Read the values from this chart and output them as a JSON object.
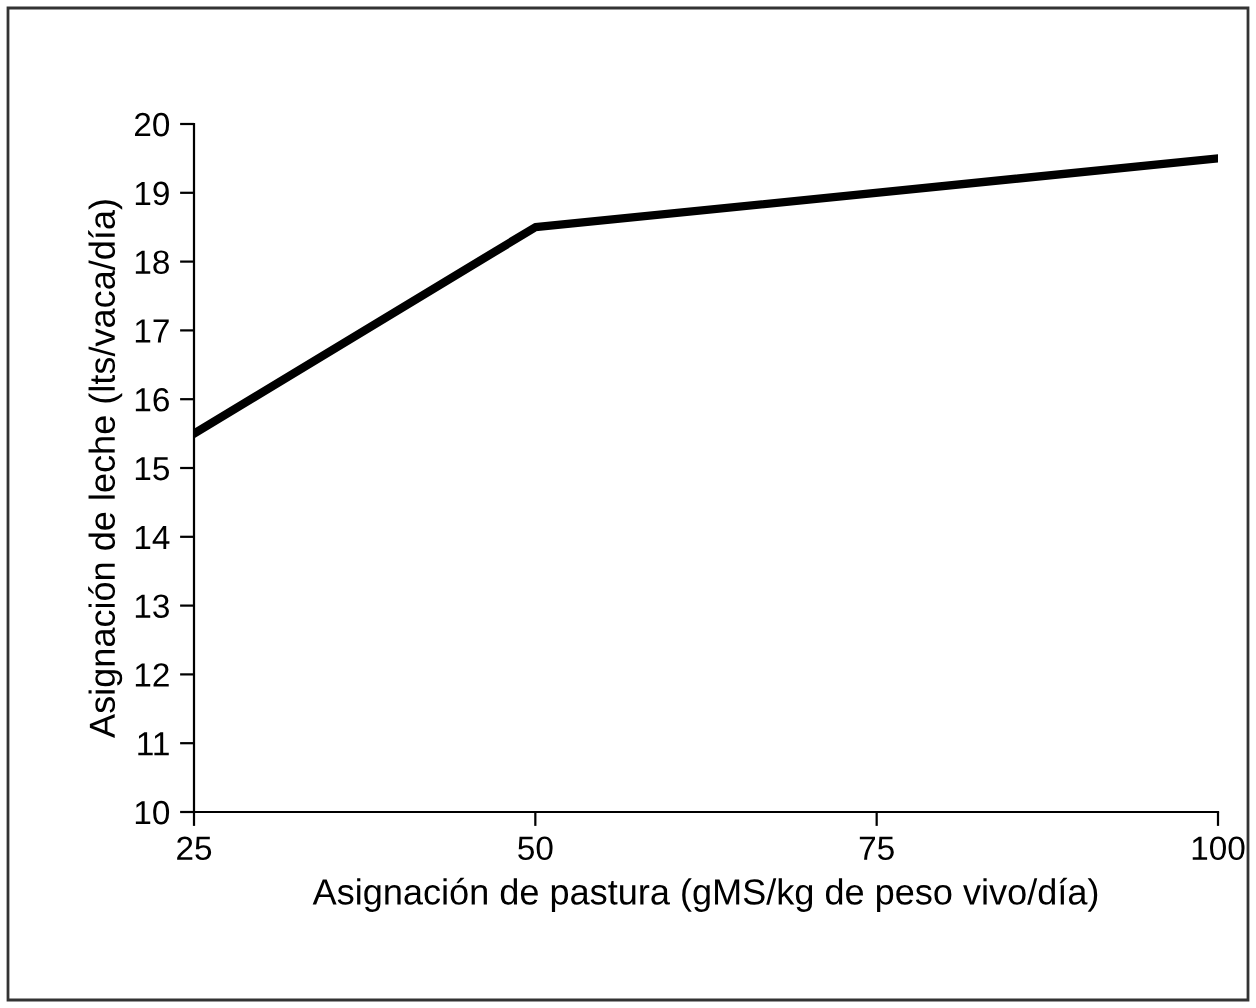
{
  "chart_data": {
    "type": "line",
    "xlabel": "Asignación de pastura (gMS/kg de peso vivo/día)",
    "ylabel": "Asignación de leche (lts/vaca/día)",
    "x": [
      25,
      50,
      100
    ],
    "series": [
      {
        "color": "#000000",
        "values": [
          15.5,
          18.5,
          19.5
        ]
      }
    ],
    "xlim": [
      25,
      100
    ],
    "xticks": [
      25,
      50,
      75,
      100
    ],
    "ylim": [
      10,
      20
    ],
    "yticks": [
      10,
      11,
      12,
      13,
      14,
      15,
      16,
      17,
      18,
      19,
      20
    ],
    "grid": false,
    "legend": false,
    "marker": "none",
    "line_style": "solid"
  }
}
